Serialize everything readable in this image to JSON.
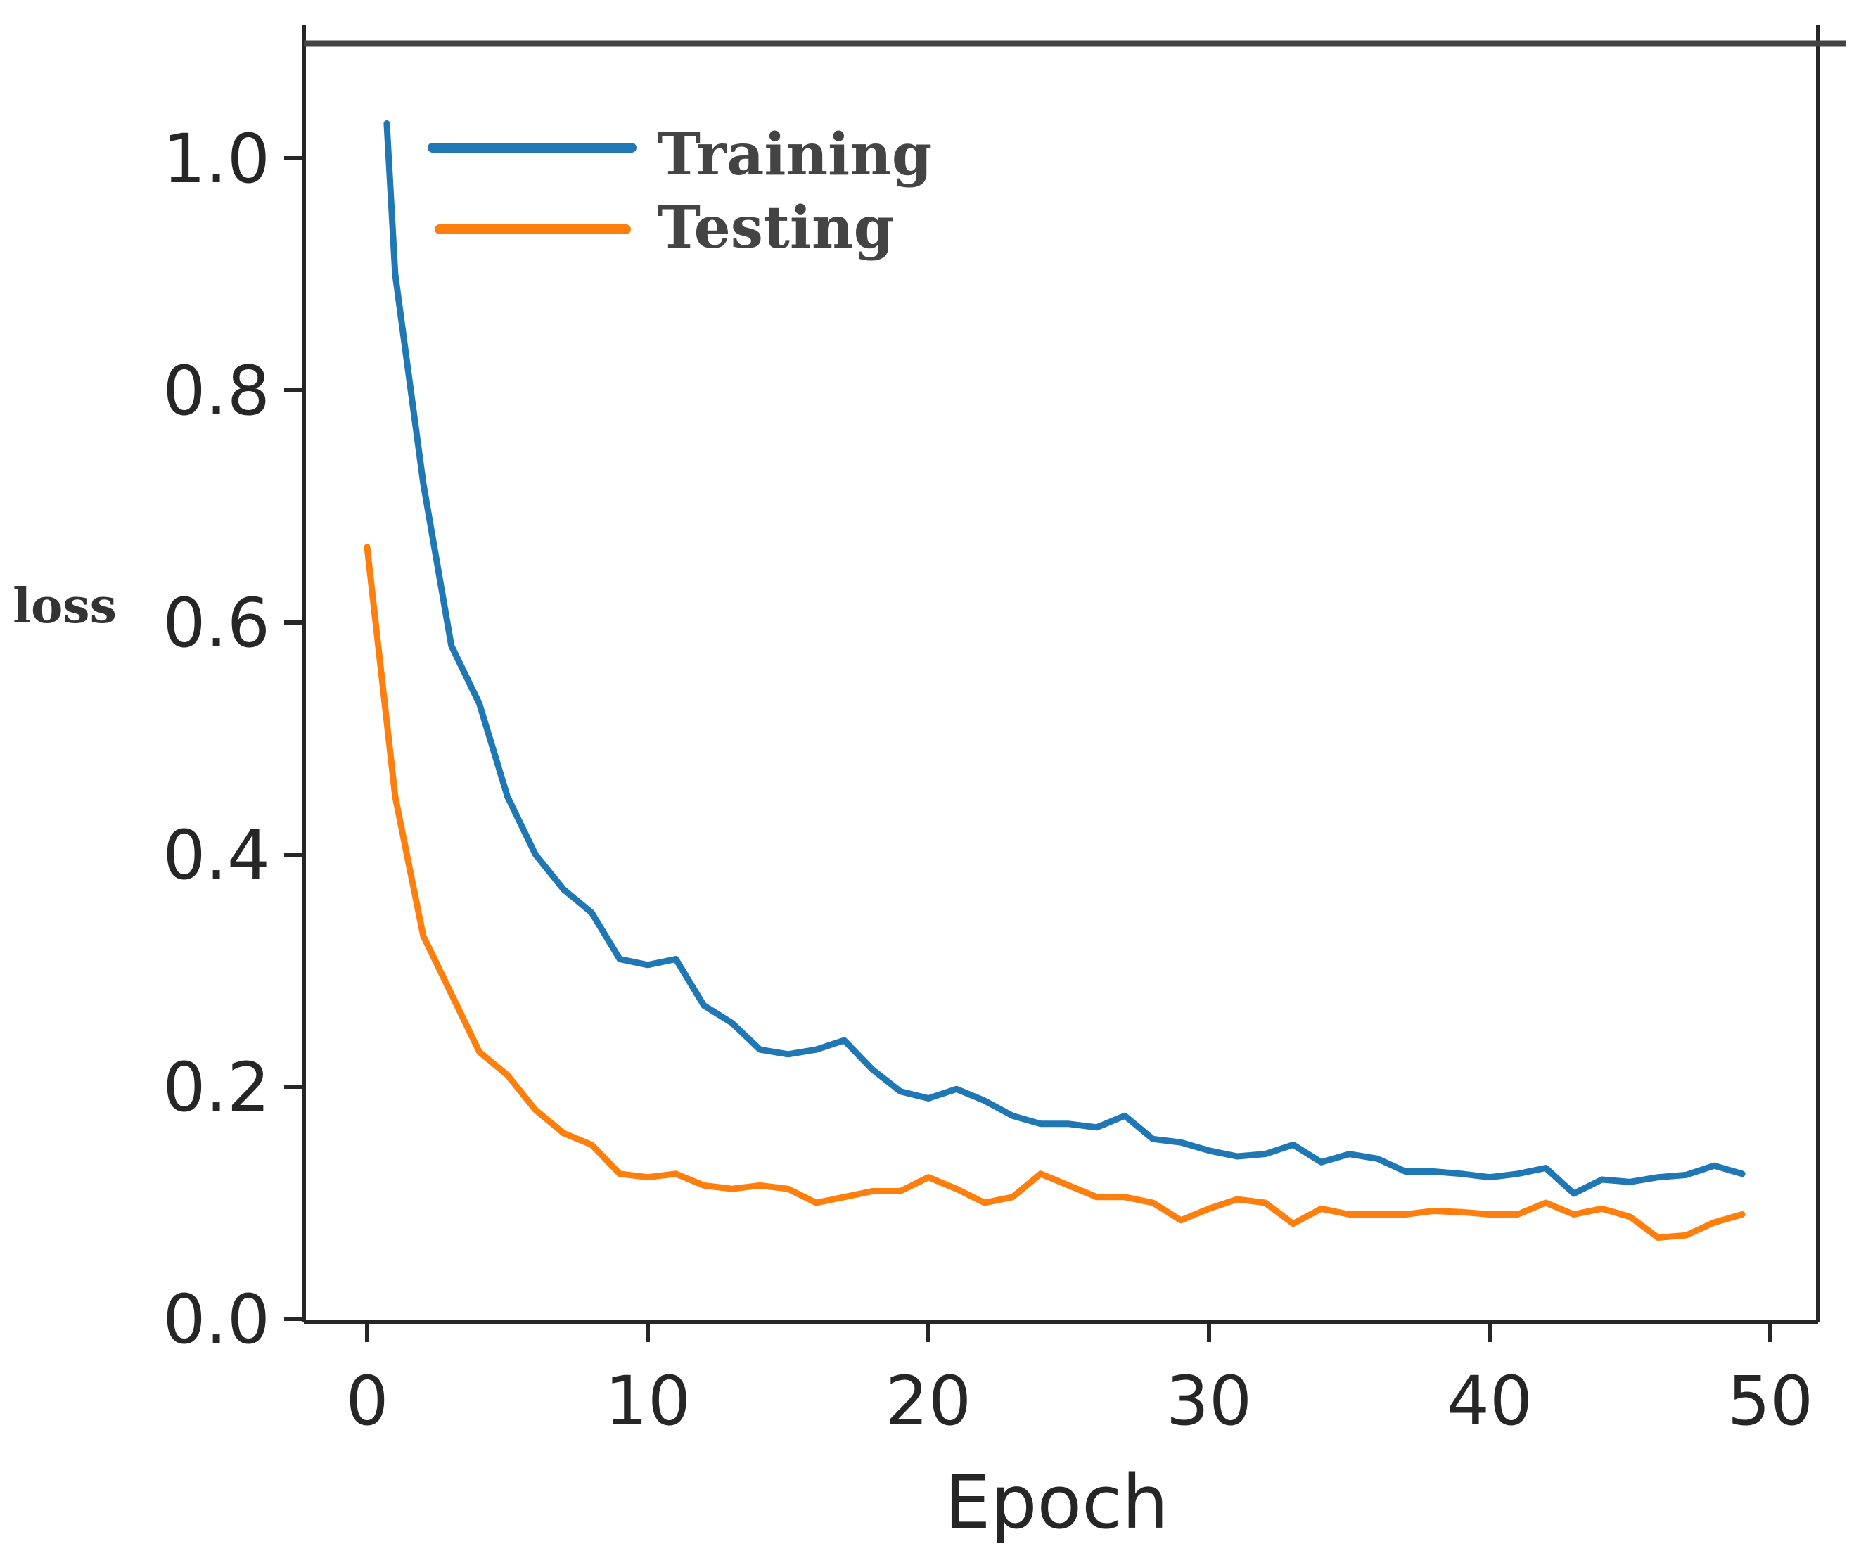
{
  "chart_data": {
    "type": "line",
    "title": "",
    "xlabel": "Epoch",
    "ylabel": "loss",
    "xlim": [
      -2,
      52
    ],
    "ylim": [
      -0.005,
      1.1
    ],
    "xticks": [
      0,
      10,
      20,
      30,
      40,
      50
    ],
    "yticks": [
      0.0,
      0.2,
      0.4,
      0.6,
      0.8,
      1.0
    ],
    "xtick_labels": [
      "0",
      "10",
      "20",
      "30",
      "40",
      "50"
    ],
    "ytick_labels": [
      "0.0",
      "0.2",
      "0.4",
      "0.6",
      "0.8",
      "1.0"
    ],
    "grid": false,
    "legend_position": "top-left",
    "series": [
      {
        "name": "Training",
        "color": "#1f77b4",
        "x": [
          0.7,
          1,
          2,
          3,
          4,
          5,
          6,
          7,
          8,
          9,
          10,
          11,
          12,
          13,
          14,
          15,
          16,
          17,
          18,
          19,
          20,
          21,
          22,
          23,
          24,
          25,
          26,
          27,
          28,
          29,
          30,
          31,
          32,
          33,
          34,
          35,
          36,
          37,
          38,
          39,
          40,
          41,
          42,
          43,
          44,
          45,
          46,
          47,
          48,
          49
        ],
        "values": [
          1.03,
          0.9,
          0.72,
          0.58,
          0.53,
          0.45,
          0.4,
          0.37,
          0.35,
          0.31,
          0.305,
          0.31,
          0.27,
          0.255,
          0.232,
          0.228,
          0.232,
          0.24,
          0.215,
          0.196,
          0.19,
          0.198,
          0.188,
          0.175,
          0.168,
          0.168,
          0.165,
          0.175,
          0.155,
          0.152,
          0.145,
          0.14,
          0.142,
          0.15,
          0.135,
          0.142,
          0.138,
          0.127,
          0.127,
          0.125,
          0.122,
          0.125,
          0.13,
          0.108,
          0.12,
          0.118,
          0.122,
          0.124,
          0.132,
          0.125
        ]
      },
      {
        "name": "Testing",
        "color": "#ff7f0e",
        "x": [
          0,
          1,
          2,
          3,
          4,
          5,
          6,
          7,
          8,
          9,
          10,
          11,
          12,
          13,
          14,
          15,
          16,
          17,
          18,
          19,
          20,
          21,
          22,
          23,
          24,
          25,
          26,
          27,
          28,
          29,
          30,
          31,
          32,
          33,
          34,
          35,
          36,
          37,
          38,
          39,
          40,
          41,
          42,
          43,
          44,
          45,
          46,
          47,
          48,
          49
        ],
        "values": [
          0.665,
          0.45,
          0.33,
          0.28,
          0.23,
          0.21,
          0.18,
          0.16,
          0.15,
          0.125,
          0.122,
          0.125,
          0.115,
          0.112,
          0.115,
          0.112,
          0.1,
          0.105,
          0.11,
          0.11,
          0.122,
          0.112,
          0.1,
          0.105,
          0.125,
          0.115,
          0.105,
          0.105,
          0.1,
          0.085,
          0.095,
          0.103,
          0.1,
          0.082,
          0.095,
          0.09,
          0.09,
          0.09,
          0.093,
          0.092,
          0.09,
          0.09,
          0.1,
          0.09,
          0.095,
          0.088,
          0.07,
          0.072,
          0.083,
          0.09
        ]
      }
    ]
  }
}
